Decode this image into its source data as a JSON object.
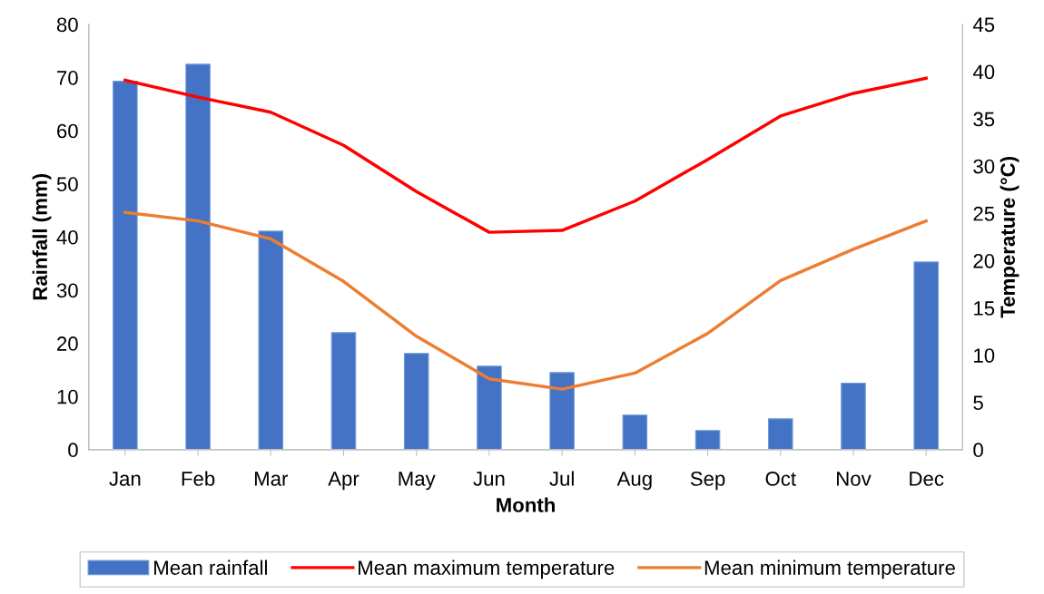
{
  "chart_data": {
    "type": "bar",
    "xlabel": "Month",
    "ylabel": "Rainfall (mm)",
    "y2label": "Temperature (°C)",
    "categories": [
      "Jan",
      "Feb",
      "Mar",
      "Apr",
      "May",
      "Jun",
      "Jul",
      "Aug",
      "Sep",
      "Oct",
      "Nov",
      "Dec"
    ],
    "series": [
      {
        "name": "Mean rainfall",
        "color": "#4472c4",
        "values": [
          69.3,
          72.5,
          41.1,
          22.0,
          18.1,
          15.7,
          14.5,
          6.5,
          3.6,
          5.8,
          12.5,
          35.3
        ]
      },
      {
        "name": "Mean maximum temperature",
        "type": "line",
        "axis": "y2",
        "color": "#ff0000",
        "values": [
          39.1,
          37.3,
          35.7,
          32.2,
          27.3,
          23.0,
          23.2,
          26.3,
          30.7,
          35.3,
          37.7,
          39.3
        ]
      },
      {
        "name": "Mean minimum temperature",
        "type": "line",
        "axis": "y2",
        "color": "#ed7d31",
        "values": [
          25.1,
          24.2,
          22.3,
          17.8,
          12.0,
          7.5,
          6.4,
          8.1,
          12.3,
          17.9,
          21.2,
          24.2
        ]
      }
    ],
    "ylim": [
      0,
      80
    ],
    "yticks": [
      0,
      10,
      20,
      30,
      40,
      50,
      60,
      70,
      80
    ],
    "y2lim": [
      0,
      45
    ],
    "y2ticks": [
      0,
      5,
      10,
      15,
      20,
      25,
      30,
      35,
      40,
      45
    ],
    "grid": false,
    "legend": "bottom",
    "marker": "none",
    "line_style": "solid"
  }
}
